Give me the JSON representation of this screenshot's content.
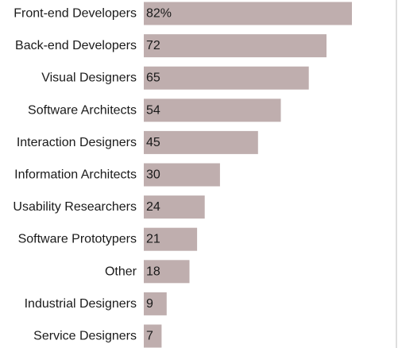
{
  "chart_data": {
    "type": "bar",
    "orientation": "horizontal",
    "categories": [
      "Front-end Developers",
      "Back-end Developers",
      "Visual Designers",
      "Software Architects",
      "Interaction Designers",
      "Information Architects",
      "Usability Researchers",
      "Software Prototypers",
      "Other",
      "Industrial Designers",
      "Service Designers"
    ],
    "values": [
      82,
      72,
      65,
      54,
      45,
      30,
      24,
      21,
      18,
      9,
      7
    ],
    "value_labels": [
      "82%",
      "72",
      "65",
      "54",
      "45",
      "30",
      "24",
      "21",
      "18",
      "9",
      "7"
    ],
    "unit": "%",
    "xlim": [
      0,
      90
    ],
    "grid": false,
    "legend": "none",
    "colors": {
      "bar": "#bfaeae",
      "text": "#1a1a1a",
      "axis": "#bdbdbd"
    }
  }
}
